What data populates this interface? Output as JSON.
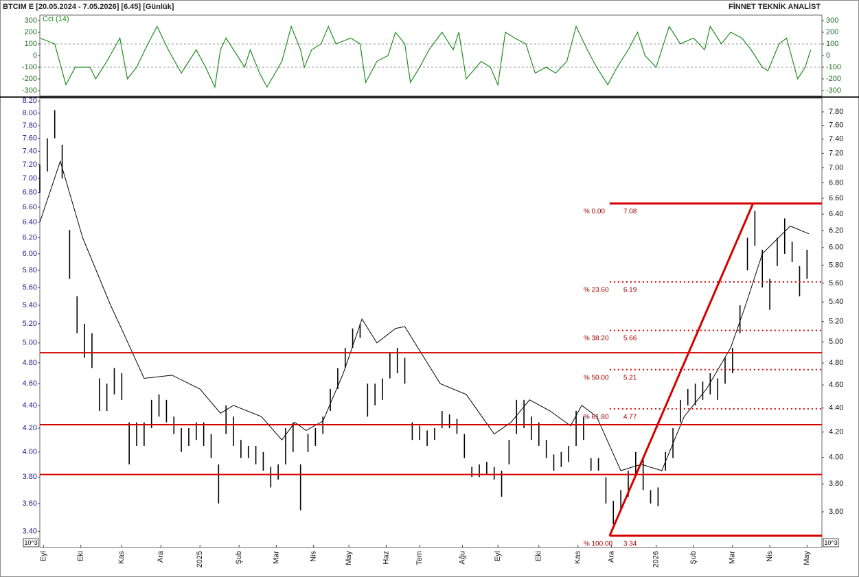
{
  "header": {
    "title": "BTCIM E  [20.05.2024 - 7.05.2026]  [6.45]  [Günlük]",
    "brand": "FİNNET TEKNİK ANALİST"
  },
  "chart_data": [
    {
      "type": "line",
      "title": "Cci (14)",
      "color": "#1e8c1e",
      "x": [
        0,
        8,
        14,
        19,
        27,
        30,
        36,
        43,
        47,
        52,
        58,
        63,
        69,
        76,
        84,
        89,
        94,
        97,
        100,
        106,
        110,
        113,
        118,
        122,
        130,
        135,
        140,
        142,
        146,
        151,
        155,
        159,
        167,
        172,
        175,
        181,
        187,
        191,
        196,
        199,
        204,
        209,
        216,
        222,
        225,
        229,
        237,
        242,
        246,
        250,
        255,
        261,
        266,
        272,
        277,
        283,
        288,
        294,
        299,
        305,
        310,
        316,
        321,
        325,
        331,
        338,
        344,
        351,
        357,
        360,
        366,
        371,
        377,
        382,
        388,
        391,
        397,
        401,
        407,
        411,
        414
      ],
      "values": [
        150,
        100,
        -250,
        -100,
        -100,
        -200,
        -50,
        150,
        -200,
        -100,
        100,
        250,
        50,
        -150,
        50,
        -100,
        -270,
        50,
        150,
        0,
        -100,
        50,
        -150,
        -270,
        -50,
        250,
        50,
        -100,
        50,
        100,
        250,
        100,
        150,
        100,
        -230,
        -50,
        0,
        200,
        100,
        -230,
        -100,
        50,
        200,
        50,
        200,
        -200,
        -50,
        -100,
        -250,
        200,
        150,
        100,
        -150,
        -100,
        -150,
        -50,
        250,
        50,
        -100,
        -250,
        -100,
        50,
        200,
        0,
        -100,
        250,
        100,
        150,
        50,
        250,
        100,
        200,
        150,
        50,
        -100,
        -130,
        100,
        150,
        -200,
        -100,
        50
      ],
      "xlim": [
        0,
        420
      ],
      "ylim": [
        -347,
        347
      ],
      "yticks": [
        300,
        200,
        100,
        0,
        -100,
        -200,
        -300
      ],
      "reference_lines": [
        100,
        -100
      ]
    },
    {
      "type": "range_bar",
      "unit_label": "10^3",
      "log_scale": true,
      "color": "#000000",
      "x": [
        0,
        4,
        8,
        12,
        16,
        20,
        24,
        28,
        32,
        36,
        40,
        44,
        48,
        52,
        56,
        60,
        64,
        68,
        72,
        76,
        80,
        84,
        88,
        92,
        96,
        100,
        104,
        108,
        112,
        116,
        120,
        124,
        128,
        132,
        136,
        140,
        144,
        148,
        152,
        156,
        160,
        164,
        168,
        172,
        176,
        180,
        184,
        188,
        192,
        196,
        200,
        204,
        208,
        212,
        216,
        220,
        224,
        228,
        232,
        236,
        240,
        244,
        248,
        252,
        256,
        260,
        264,
        268,
        272,
        276,
        280,
        284,
        288,
        292,
        296,
        300,
        304,
        308,
        312,
        316,
        320,
        324,
        328,
        332,
        336,
        340,
        344,
        348,
        352,
        356,
        360,
        364,
        368,
        372,
        376,
        380,
        384,
        388,
        392,
        396,
        400,
        404,
        408,
        412
      ],
      "high": [
        7.2,
        7.6,
        8.05,
        7.5,
        6.3,
        5.5,
        5.2,
        5.1,
        4.65,
        4.6,
        4.75,
        4.7,
        4.25,
        4.25,
        4.25,
        4.45,
        4.5,
        4.45,
        4.3,
        4.2,
        4.2,
        4.25,
        4.25,
        4.15,
        3.9,
        4.4,
        4.3,
        4.1,
        4.05,
        4.05,
        4.0,
        3.88,
        3.9,
        4.2,
        4.25,
        3.9,
        4.15,
        4.2,
        4.3,
        4.55,
        4.75,
        4.95,
        5.15,
        5.2,
        4.6,
        4.6,
        4.65,
        4.9,
        4.95,
        4.85,
        4.25,
        4.22,
        4.18,
        4.2,
        4.35,
        4.32,
        4.28,
        4.15,
        3.88,
        3.9,
        3.92,
        3.88,
        3.85,
        4.1,
        4.45,
        4.45,
        4.3,
        4.25,
        4.1,
        3.98,
        4.0,
        4.05,
        4.35,
        4.3,
        3.95,
        3.95,
        3.8,
        3.62,
        3.7,
        3.85,
        4.0,
        3.95,
        3.7,
        3.72,
        4.0,
        4.2,
        4.45,
        4.55,
        4.6,
        4.62,
        4.7,
        4.65,
        4.85,
        4.95,
        5.4,
        6.2,
        6.55,
        6.05,
        5.7,
        6.2,
        6.45,
        6.15,
        5.85,
        6.05
      ],
      "low": [
        6.8,
        7.1,
        7.6,
        7.0,
        5.7,
        5.1,
        4.85,
        4.75,
        4.35,
        4.35,
        4.5,
        4.45,
        3.9,
        4.05,
        4.05,
        4.2,
        4.3,
        4.25,
        4.15,
        4.0,
        4.05,
        4.1,
        4.05,
        3.95,
        3.6,
        4.15,
        4.05,
        3.95,
        3.95,
        3.9,
        3.85,
        3.72,
        3.78,
        3.9,
        4.0,
        3.55,
        4.0,
        4.05,
        4.15,
        4.35,
        4.55,
        4.75,
        4.95,
        5.05,
        4.3,
        4.4,
        4.45,
        4.65,
        4.7,
        4.6,
        4.1,
        4.1,
        4.05,
        4.1,
        4.2,
        4.2,
        4.15,
        3.95,
        3.8,
        3.8,
        3.82,
        3.78,
        3.65,
        3.9,
        4.15,
        4.2,
        4.1,
        4.05,
        3.95,
        3.85,
        3.88,
        3.92,
        4.05,
        4.1,
        3.85,
        3.85,
        3.6,
        3.45,
        3.55,
        3.65,
        3.8,
        3.7,
        3.6,
        3.58,
        3.85,
        3.95,
        4.25,
        4.4,
        4.4,
        4.45,
        4.5,
        4.45,
        4.6,
        4.7,
        5.1,
        5.8,
        6.1,
        5.6,
        5.35,
        5.85,
        6.0,
        5.9,
        5.5,
        5.7
      ],
      "ma": {
        "color": "#000000",
        "x": [
          0,
          11,
          23,
          38,
          45,
          56,
          71,
          86,
          97,
          104,
          119,
          130,
          137,
          143,
          152,
          163,
          173,
          181,
          191,
          196,
          215,
          229,
          244,
          253,
          263,
          274,
          285,
          291,
          299,
          312,
          323,
          334,
          346,
          358,
          371,
          379,
          388,
          403,
          413
        ],
        "values": [
          6.4,
          7.25,
          6.2,
          5.4,
          5.1,
          4.65,
          4.68,
          4.55,
          4.33,
          4.4,
          4.3,
          4.1,
          4.25,
          4.18,
          4.26,
          4.7,
          5.25,
          5.0,
          5.15,
          5.17,
          4.6,
          4.5,
          4.15,
          4.25,
          4.45,
          4.35,
          4.22,
          4.4,
          4.3,
          3.85,
          3.9,
          3.85,
          4.3,
          4.55,
          4.95,
          5.4,
          6.0,
          6.35,
          6.25
        ]
      },
      "hlines": {
        "color": "#d40000",
        "values": [
          4.9,
          4.23,
          3.82
        ]
      },
      "trendline": {
        "color": "#d40000",
        "x": [
          306,
          383
        ],
        "values": [
          3.37,
          6.65
        ]
      },
      "fib": {
        "color": "#d40000",
        "text_color": "#a00000",
        "x": [
          306,
          420
        ],
        "high": 6.65,
        "low": 3.37,
        "levels": [
          {
            "value": 0,
            "label": "% 0.00",
            "price": 7.08
          },
          {
            "value": 23.6,
            "label": "% 23.60",
            "price": 6.19
          },
          {
            "value": 38.2,
            "label": "% 38.20",
            "price": 5.66
          },
          {
            "value": 50,
            "label": "% 50.00",
            "price": 5.21
          },
          {
            "value": 61.8,
            "label": "% 61.80",
            "price": 4.77
          },
          {
            "value": 100,
            "label": "% 100.00",
            "price": 3.34
          }
        ]
      },
      "xlim": [
        0,
        420
      ],
      "ylim": [
        3.29,
        8.25
      ],
      "y2lim": [
        3.36,
        8.01
      ],
      "xticks": [
        {
          "value": 2,
          "label": "Eyl"
        },
        {
          "value": 22,
          "label": "Eki"
        },
        {
          "value": 44,
          "label": "Kas"
        },
        {
          "value": 65,
          "label": "Ara"
        },
        {
          "value": 86,
          "label": "2025"
        },
        {
          "value": 107,
          "label": "Şub"
        },
        {
          "value": 127,
          "label": "Mar"
        },
        {
          "value": 147,
          "label": "Nis"
        },
        {
          "value": 166,
          "label": "May"
        },
        {
          "value": 186,
          "label": "Haz"
        },
        {
          "value": 204,
          "label": "Tem"
        },
        {
          "value": 227,
          "label": "Ağu"
        },
        {
          "value": 246,
          "label": "Eyl"
        },
        {
          "value": 268,
          "label": "Eki"
        },
        {
          "value": 289,
          "label": "Kas"
        },
        {
          "value": 307,
          "label": "Ara"
        },
        {
          "value": 331,
          "label": "2026"
        },
        {
          "value": 351,
          "label": "Şub"
        },
        {
          "value": 372,
          "label": "Mar"
        },
        {
          "value": 392,
          "label": "Nis"
        },
        {
          "value": 412,
          "label": "May"
        }
      ],
      "yticks": [
        {
          "value": 8.2,
          "label": "8.20"
        },
        {
          "value": 8.0,
          "label": "8.00"
        },
        {
          "value": 7.8,
          "label": "7.80"
        },
        {
          "value": 7.6,
          "label": "7.60"
        },
        {
          "value": 7.4,
          "label": "7.40"
        },
        {
          "value": 7.2,
          "label": "7.20"
        },
        {
          "value": 7.0,
          "label": "7.00"
        },
        {
          "value": 6.8,
          "label": "6.80"
        },
        {
          "value": 6.6,
          "label": "6.60"
        },
        {
          "value": 6.4,
          "label": "6.40"
        },
        {
          "value": 6.2,
          "label": "6.20"
        },
        {
          "value": 6.0,
          "label": "6.00"
        },
        {
          "value": 5.8,
          "label": "5.80"
        },
        {
          "value": 5.6,
          "label": "5.60"
        },
        {
          "value": 5.4,
          "label": "5.40"
        },
        {
          "value": 5.2,
          "label": "5.20"
        },
        {
          "value": 5.0,
          "label": "5.00"
        },
        {
          "value": 4.8,
          "label": "4.80"
        },
        {
          "value": 4.6,
          "label": "4.60"
        },
        {
          "value": 4.4,
          "label": "4.40"
        },
        {
          "value": 4.2,
          "label": "4.20"
        },
        {
          "value": 4.0,
          "label": "4.00"
        },
        {
          "value": 3.8,
          "label": "3.80"
        },
        {
          "value": 3.6,
          "label": "3.60"
        },
        {
          "value": 3.4,
          "label": "3.40"
        }
      ],
      "y2ticks": [
        {
          "value": 7.8,
          "label": "7.80"
        },
        {
          "value": 7.6,
          "label": "7.60"
        },
        {
          "value": 7.4,
          "label": "7.40"
        },
        {
          "value": 7.2,
          "label": "7.20"
        },
        {
          "value": 7.0,
          "label": "7.00"
        },
        {
          "value": 6.8,
          "label": "6.80"
        },
        {
          "value": 6.6,
          "label": "6.60"
        },
        {
          "value": 6.4,
          "label": "6.40"
        },
        {
          "value": 6.2,
          "label": "6.20"
        },
        {
          "value": 6.0,
          "label": "6.00"
        },
        {
          "value": 5.8,
          "label": "5.80"
        },
        {
          "value": 5.6,
          "label": "5.60"
        },
        {
          "value": 5.4,
          "label": "5.40"
        },
        {
          "value": 5.2,
          "label": "5.20"
        },
        {
          "value": 5.0,
          "label": "5.00"
        },
        {
          "value": 4.8,
          "label": "4.80"
        },
        {
          "value": 4.6,
          "label": "4.60"
        },
        {
          "value": 4.4,
          "label": "4.40"
        },
        {
          "value": 4.2,
          "label": "4.20"
        },
        {
          "value": 4.0,
          "label": "4.00"
        },
        {
          "value": 3.8,
          "label": "3.80"
        },
        {
          "value": 3.6,
          "label": "3.60"
        }
      ]
    }
  ]
}
